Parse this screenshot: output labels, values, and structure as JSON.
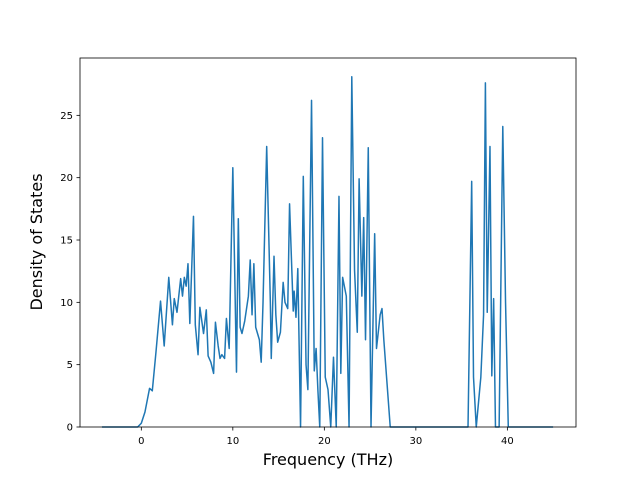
{
  "chart_data": {
    "type": "line",
    "xlabel": "Frequency (THz)",
    "ylabel": "Density of States",
    "color": "#1f77b4",
    "x": [
      -4.3,
      -0.4,
      0,
      0.4,
      0.9,
      1.2,
      1.6,
      2.1,
      2.5,
      3.0,
      3.4,
      3.6,
      3.9,
      4.3,
      4.5,
      4.7,
      4.9,
      5.1,
      5.3,
      5.7,
      5.9,
      6.2,
      6.4,
      6.8,
      7.1,
      7.3,
      7.6,
      7.9,
      8.1,
      8.4,
      8.6,
      8.8,
      9.1,
      9.3,
      9.6,
      10.0,
      10.4,
      10.6,
      10.8,
      11.0,
      11.3,
      11.7,
      11.9,
      12.1,
      12.3,
      12.5,
      12.9,
      13.1,
      13.3,
      13.7,
      14.1,
      14.2,
      14.5,
      14.7,
      14.9,
      15.2,
      15.5,
      15.7,
      16.0,
      16.2,
      16.6,
      16.7,
      16.9,
      17.1,
      17.4,
      17.7,
      18.0,
      18.2,
      18.6,
      18.9,
      19.1,
      19.3,
      19.5,
      19.8,
      20.1,
      20.4,
      20.7,
      21.0,
      21.3,
      21.6,
      21.8,
      22.0,
      22.4,
      22.7,
      23.0,
      23.3,
      23.6,
      23.8,
      24.1,
      24.3,
      24.5,
      24.8,
      25.1,
      25.5,
      25.7,
      26.1,
      26.3,
      26.5,
      27.2,
      35.7,
      36.1,
      36.3,
      36.6,
      37.1,
      37.4,
      37.6,
      37.8,
      38.1,
      38.3,
      38.5,
      38.7,
      39.1,
      39.5,
      39.8,
      40.1,
      45.0
    ],
    "values": [
      0,
      0,
      0.3,
      1.2,
      3.1,
      2.9,
      6,
      10.1,
      6.5,
      12,
      8.2,
      10.3,
      9.2,
      11.9,
      10.5,
      12,
      11.3,
      13.1,
      8.3,
      16.9,
      8.2,
      5.8,
      9.6,
      7.5,
      9.4,
      5.7,
      5.2,
      4.3,
      8.4,
      6.5,
      5.5,
      5.8,
      5.5,
      8.7,
      6.3,
      20.8,
      4.4,
      16.7,
      8,
      7.5,
      8.5,
      10.5,
      13.4,
      9,
      13.1,
      8,
      7,
      5.2,
      10,
      22.5,
      10,
      5.5,
      13.7,
      9,
      6.8,
      7.6,
      11.6,
      10,
      9.5,
      17.9,
      9.3,
      10.9,
      8.8,
      12.7,
      0,
      20.1,
      5,
      3,
      26.2,
      4.5,
      6.3,
      2.9,
      0,
      23.2,
      4,
      3,
      0,
      5.6,
      0,
      18.5,
      4.3,
      12,
      10.5,
      0,
      28.1,
      12.6,
      7.6,
      19.9,
      10.5,
      16.8,
      7,
      22.4,
      0,
      15.5,
      6.3,
      9,
      9.5,
      7,
      0,
      0,
      19.7,
      4,
      0,
      4,
      9,
      27.6,
      9.2,
      22.5,
      4.1,
      10.3,
      0,
      0,
      24.1,
      10,
      0,
      0
    ],
    "xlim": [
      -6.7,
      47.5
    ],
    "ylim": [
      0,
      29.6
    ],
    "xticks": [
      0,
      10,
      20,
      30,
      40
    ],
    "yticks": [
      0,
      5,
      10,
      15,
      20,
      25
    ]
  }
}
